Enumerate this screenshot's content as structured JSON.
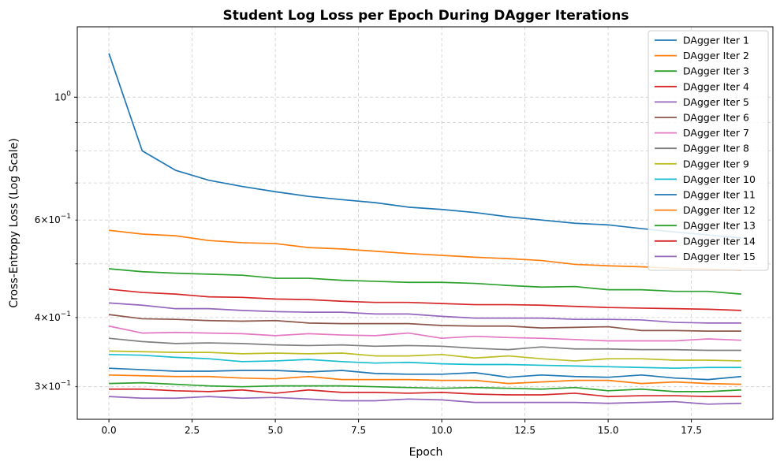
{
  "chart_data": {
    "type": "line",
    "title": "Student Log Loss per Epoch During DAgger Iterations",
    "xlabel": "Epoch",
    "ylabel": "Cross-Entropy Loss (Log Scale)",
    "xlim": [
      -0.95,
      19.95
    ],
    "ylim": [
      0.262,
      1.34
    ],
    "yscale": "log",
    "grid": true,
    "legend_position": "upper right",
    "x_ticks": [
      0.0,
      2.5,
      5.0,
      7.5,
      10.0,
      12.5,
      15.0,
      17.5
    ],
    "x_tick_labels": [
      "0.0",
      "2.5",
      "5.0",
      "7.5",
      "10.0",
      "12.5",
      "15.0",
      "17.5"
    ],
    "y_major_ticks": [
      1.0
    ],
    "y_major_tick_labels": [
      "10^0"
    ],
    "y_minor_ticks": [
      0.3,
      0.4,
      0.5,
      0.6,
      0.7,
      0.8,
      0.9
    ],
    "y_minor_tick_labels": [
      {
        "base": "3×10",
        "exp": "−1"
      },
      {
        "base": "4×10",
        "exp": "−1"
      },
      "",
      {
        "base": "6×10",
        "exp": "−1"
      },
      "",
      "",
      ""
    ],
    "x": [
      0,
      1,
      2,
      3,
      4,
      5,
      6,
      7,
      8,
      9,
      10,
      11,
      12,
      13,
      14,
      15,
      16,
      17,
      18,
      19
    ],
    "series": [
      {
        "name": "DAgger Iter 1",
        "color": "#1f77b4",
        "values": [
          1.2,
          0.8,
          0.738,
          0.708,
          0.69,
          0.675,
          0.662,
          0.653,
          0.645,
          0.633,
          0.627,
          0.619,
          0.608,
          0.6,
          0.592,
          0.588,
          0.579,
          0.571,
          0.564,
          0.557
        ]
      },
      {
        "name": "DAgger Iter 2",
        "color": "#ff7f0e",
        "values": [
          0.575,
          0.566,
          0.562,
          0.551,
          0.546,
          0.544,
          0.535,
          0.532,
          0.527,
          0.522,
          0.518,
          0.514,
          0.511,
          0.507,
          0.499,
          0.496,
          0.494,
          0.491,
          0.489,
          0.487
        ]
      },
      {
        "name": "DAgger Iter 3",
        "color": "#2ca02c",
        "values": [
          0.49,
          0.484,
          0.481,
          0.479,
          0.477,
          0.471,
          0.471,
          0.467,
          0.465,
          0.463,
          0.463,
          0.461,
          0.457,
          0.454,
          0.455,
          0.449,
          0.449,
          0.446,
          0.446,
          0.441
        ]
      },
      {
        "name": "DAgger Iter 4",
        "color": "#d62728",
        "values": [
          0.45,
          0.444,
          0.441,
          0.436,
          0.435,
          0.432,
          0.431,
          0.428,
          0.426,
          0.426,
          0.424,
          0.422,
          0.422,
          0.421,
          0.419,
          0.417,
          0.416,
          0.415,
          0.414,
          0.412
        ]
      },
      {
        "name": "DAgger Iter 5",
        "color": "#9467bd",
        "values": [
          0.425,
          0.421,
          0.415,
          0.415,
          0.412,
          0.41,
          0.409,
          0.409,
          0.406,
          0.406,
          0.402,
          0.399,
          0.399,
          0.399,
          0.397,
          0.397,
          0.396,
          0.392,
          0.391,
          0.391
        ]
      },
      {
        "name": "DAgger Iter 6",
        "color": "#8c564b",
        "values": [
          0.405,
          0.398,
          0.397,
          0.395,
          0.394,
          0.395,
          0.391,
          0.39,
          0.39,
          0.39,
          0.387,
          0.386,
          0.386,
          0.383,
          0.384,
          0.385,
          0.379,
          0.379,
          0.378,
          0.378
        ]
      },
      {
        "name": "DAgger Iter 7",
        "color": "#e377c2",
        "values": [
          0.386,
          0.375,
          0.376,
          0.375,
          0.374,
          0.371,
          0.374,
          0.372,
          0.371,
          0.375,
          0.367,
          0.37,
          0.368,
          0.367,
          0.365,
          0.363,
          0.363,
          0.363,
          0.366,
          0.364
        ]
      },
      {
        "name": "DAgger Iter 8",
        "color": "#7f7f7f",
        "values": [
          0.367,
          0.362,
          0.359,
          0.36,
          0.359,
          0.357,
          0.356,
          0.357,
          0.355,
          0.356,
          0.355,
          0.352,
          0.35,
          0.354,
          0.351,
          0.351,
          0.35,
          0.35,
          0.349,
          0.349
        ]
      },
      {
        "name": "DAgger Iter 9",
        "color": "#bcbd22",
        "values": [
          0.348,
          0.347,
          0.346,
          0.346,
          0.344,
          0.345,
          0.344,
          0.345,
          0.341,
          0.341,
          0.343,
          0.338,
          0.341,
          0.337,
          0.334,
          0.337,
          0.337,
          0.335,
          0.335,
          0.334
        ]
      },
      {
        "name": "DAgger Iter 10",
        "color": "#17becf",
        "values": [
          0.343,
          0.342,
          0.339,
          0.337,
          0.333,
          0.334,
          0.336,
          0.333,
          0.331,
          0.332,
          0.33,
          0.329,
          0.329,
          0.328,
          0.327,
          0.326,
          0.325,
          0.324,
          0.325,
          0.325
        ]
      },
      {
        "name": "DAgger Iter 11",
        "color": "#1f77b4",
        "values": [
          0.324,
          0.322,
          0.32,
          0.32,
          0.321,
          0.321,
          0.319,
          0.321,
          0.317,
          0.316,
          0.316,
          0.318,
          0.312,
          0.315,
          0.313,
          0.312,
          0.315,
          0.311,
          0.309,
          0.313
        ]
      },
      {
        "name": "DAgger Iter 12",
        "color": "#ff7f0e",
        "values": [
          0.315,
          0.314,
          0.313,
          0.313,
          0.311,
          0.31,
          0.313,
          0.309,
          0.309,
          0.309,
          0.308,
          0.308,
          0.304,
          0.306,
          0.308,
          0.308,
          0.304,
          0.306,
          0.304,
          0.303
        ]
      },
      {
        "name": "DAgger Iter 13",
        "color": "#2ca02c",
        "values": [
          0.304,
          0.305,
          0.303,
          0.301,
          0.3,
          0.301,
          0.301,
          0.301,
          0.3,
          0.299,
          0.298,
          0.299,
          0.298,
          0.297,
          0.299,
          0.295,
          0.297,
          0.294,
          0.294,
          0.296
        ]
      },
      {
        "name": "DAgger Iter 14",
        "color": "#d62728",
        "values": [
          0.297,
          0.297,
          0.295,
          0.294,
          0.296,
          0.292,
          0.296,
          0.293,
          0.293,
          0.292,
          0.293,
          0.291,
          0.29,
          0.29,
          0.292,
          0.288,
          0.289,
          0.289,
          0.288,
          0.288
        ]
      },
      {
        "name": "DAgger Iter 15",
        "color": "#9467bd",
        "values": [
          0.288,
          0.286,
          0.286,
          0.288,
          0.286,
          0.287,
          0.285,
          0.283,
          0.283,
          0.285,
          0.284,
          0.281,
          0.281,
          0.281,
          0.281,
          0.28,
          0.281,
          0.282,
          0.279,
          0.28
        ]
      }
    ]
  }
}
